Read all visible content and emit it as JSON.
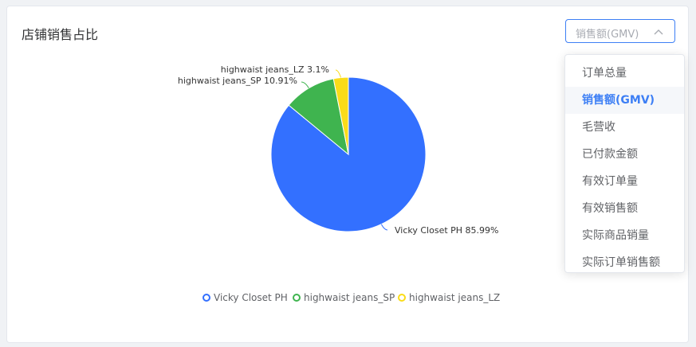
{
  "card": {
    "title": "店铺销售占比"
  },
  "metric_select": {
    "value": "销售额(GMV)",
    "options": [
      "订单总量",
      "销售额(GMV)",
      "毛营收",
      "已付款金额",
      "有效订单量",
      "有效销售额",
      "实际商品销量",
      "实际订单销售额"
    ],
    "selected_index": 1
  },
  "colors": {
    "accent": "#3d7ff5"
  },
  "chart_data": {
    "type": "pie",
    "slices": [
      {
        "name": "Vicky Closet PH",
        "value": 85.99,
        "label": "Vicky Closet PH 85.99%",
        "color": "#3370ff"
      },
      {
        "name": "highwaist jeans_SP",
        "value": 10.91,
        "label": "highwaist jeans_SP 10.91%",
        "color": "#3fb44f"
      },
      {
        "name": "highwaist jeans_LZ",
        "value": 3.1,
        "label": "highwaist jeans_LZ 3.1%",
        "color": "#fadc19"
      }
    ],
    "legend": "bottom"
  }
}
